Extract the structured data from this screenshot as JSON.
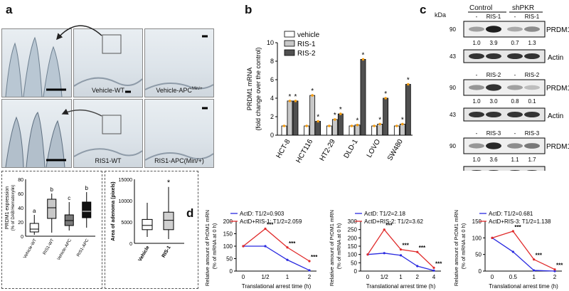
{
  "panels": {
    "a": "a",
    "b": "b",
    "c": "c",
    "d": "d"
  },
  "panel_a": {
    "images": [
      {
        "label": ""
      },
      {
        "label": "Vehicle-WT"
      },
      {
        "label": "Vehicle-APC"
      },
      {
        "label": ""
      },
      {
        "label": "RIS1-WT"
      },
      {
        "label": "RIS1-APC(Min/+)"
      }
    ],
    "apc_sup": "Min/+",
    "box1": {
      "ylabel": "PRDM1 expression (% of DAB/Hematoxylin)",
      "categories": [
        "Vehicle-WT",
        "RIS1-WT",
        "Vehicle-APC",
        "RIS1-APC"
      ],
      "letters": [
        "a",
        "b",
        "c",
        "b"
      ],
      "yticks": [
        "0",
        "20",
        "40",
        "60",
        "80"
      ]
    },
    "box2": {
      "ylabel": "Area of adenoma (pixels)",
      "categories": [
        "Vehicle",
        "RIS-1"
      ],
      "yticks": [
        "0",
        "5000",
        "10000",
        "15000"
      ],
      "star": "*"
    }
  },
  "chart_data": [
    {
      "type": "bar",
      "title": "",
      "ylabel": "PRDM1 mRNA (fold change over the control)",
      "ylim": [
        0,
        10
      ],
      "yticks": [
        "0",
        "2",
        "4",
        "6",
        "8",
        "10"
      ],
      "categories": [
        "HCT-8",
        "HCT116",
        "HT2-29",
        "DLD-1",
        "LOVO",
        "SW480"
      ],
      "series": [
        {
          "name": "vehicle",
          "values": [
            1.0,
            1.0,
            1.0,
            1.0,
            1.0,
            1.0
          ]
        },
        {
          "name": "RIS-1",
          "values": [
            3.7,
            4.3,
            1.7,
            1.1,
            1.2,
            1.2
          ]
        },
        {
          "name": "RIS-2",
          "values": [
            3.7,
            1.5,
            2.3,
            8.2,
            4.0,
            5.5
          ]
        }
      ],
      "stars": [
        [
          0,
          1
        ],
        [
          0,
          2
        ],
        [
          1,
          1
        ],
        [
          1,
          2
        ],
        [
          2,
          1
        ],
        [
          2,
          2
        ],
        [
          3,
          1
        ],
        [
          3,
          2
        ],
        [
          4,
          1
        ],
        [
          4,
          2
        ],
        [
          5,
          1
        ],
        [
          5,
          2
        ]
      ],
      "colors": [
        "#ffffff",
        "#c8c8c8",
        "#505050"
      ]
    },
    {
      "type": "line",
      "ylabel": "Relative amount of PrDM1 mRNA (% of mRNA at 0 h)",
      "xlabel": "Translational arrest time (h)",
      "xticks": [
        "0",
        "1/2",
        "1",
        "2"
      ],
      "ylim": [
        0,
        200
      ],
      "yticks": [
        "0",
        "50",
        "100",
        "150",
        "200"
      ],
      "series": [
        {
          "name": "ActD: T1/2=0.903",
          "color": "#2a2ae0",
          "values": [
            100,
            100,
            45,
            3
          ]
        },
        {
          "name": "ActD+RIS-1: T1/2=2.059",
          "color": "#e02a2a",
          "values": [
            100,
            170,
            95,
            40
          ]
        }
      ],
      "stars": [
        {
          "x": 1,
          "text": "***"
        },
        {
          "x": 2,
          "text": "***"
        },
        {
          "x": 3,
          "text": "***"
        }
      ]
    },
    {
      "type": "line",
      "ylabel": "Relative amount of PrDM1 mRNA (% of mRNA at 0 h)",
      "xlabel": "Translational arrest time (h)",
      "xticks": [
        "0",
        "1/2",
        "1",
        "2",
        "4"
      ],
      "ylim": [
        0,
        300
      ],
      "yticks": [
        "0",
        "50",
        "100",
        "150",
        "200",
        "250",
        "300"
      ],
      "series": [
        {
          "name": "ActD: T1/2=2.18",
          "color": "#2a2ae0",
          "values": [
            100,
            108,
            95,
            30,
            3
          ]
        },
        {
          "name": "ActD+RIS-2: T1/2=3.62",
          "color": "#e02a2a",
          "values": [
            100,
            250,
            130,
            115,
            20
          ]
        }
      ],
      "stars": [
        {
          "x": 1,
          "text": "***"
        },
        {
          "x": 2,
          "text": "***"
        },
        {
          "x": 3,
          "text": "***"
        },
        {
          "x": 4,
          "text": "***"
        }
      ]
    },
    {
      "type": "line",
      "ylabel": "Relative amount of PrDM1 mRNA (% of mRNA at 0 h)",
      "xlabel": "Translational arrest time (h)",
      "xticks": [
        "0",
        "0.5",
        "1",
        "2"
      ],
      "ylim": [
        0,
        150
      ],
      "yticks": [
        "0",
        "50",
        "100",
        "150"
      ],
      "series": [
        {
          "name": "ActD: T1/2=0.681",
          "color": "#2a2ae0",
          "values": [
            100,
            58,
            2,
            0
          ]
        },
        {
          "name": "ActD+RIS-3: T1/2=1.138",
          "color": "#e02a2a",
          "values": [
            100,
            120,
            35,
            5
          ]
        }
      ],
      "stars": [
        {
          "x": 1,
          "text": "***"
        },
        {
          "x": 2,
          "text": "***"
        },
        {
          "x": 3,
          "text": "***"
        }
      ]
    }
  ],
  "panel_c": {
    "kda": "kDa",
    "control": "Control",
    "shpkr": "shPKR",
    "blots": [
      {
        "lanes": [
          "-",
          "RIS-1",
          "-",
          "RIS-1"
        ],
        "mw_top": "90",
        "mw_bot": "43",
        "values": [
          "1.0",
          "3.9",
          "0.7",
          "1.3"
        ],
        "band": "PRDM1",
        "loading": "Actin"
      },
      {
        "lanes": [
          "-",
          "RIS-2",
          "-",
          "RIS-2"
        ],
        "mw_top": "90",
        "mw_bot": "43",
        "values": [
          "1.0",
          "3.0",
          "0.8",
          "0.1"
        ],
        "band": "PRDM1",
        "loading": "Actin"
      },
      {
        "lanes": [
          "-",
          "RIS-3",
          "-",
          "RIS-3"
        ],
        "mw_top": "90",
        "mw_bot": "43",
        "values": [
          "1.0",
          "3.6",
          "1.1",
          "1.7"
        ],
        "band": "PRDM1",
        "loading": "Actin"
      }
    ],
    "intensity": [
      [
        0.25,
        0.9,
        0.2,
        0.35
      ],
      [
        0.3,
        0.8,
        0.25,
        0.1
      ],
      [
        0.3,
        0.85,
        0.35,
        0.45
      ]
    ]
  }
}
